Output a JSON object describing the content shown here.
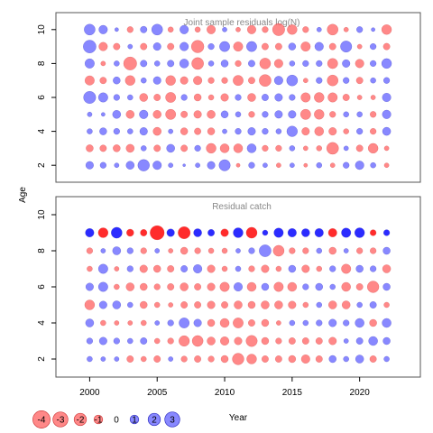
{
  "colors": {
    "negative": "#ff6060",
    "positive": "#6060ff",
    "negative_strong": "#ff2020",
    "positive_strong": "#2020ff",
    "frame": "#555555"
  },
  "chart_data": [
    {
      "type": "bubble",
      "title": "Joint sample residuals log(N)",
      "years": [
        2000,
        2001,
        2002,
        2003,
        2004,
        2005,
        2006,
        2007,
        2008,
        2009,
        2010,
        2011,
        2012,
        2013,
        2014,
        2015,
        2016,
        2017,
        2018,
        2019,
        2020,
        2021,
        2022
      ],
      "ages": [
        2,
        3,
        4,
        5,
        6,
        7,
        8,
        9,
        10
      ],
      "ylim": [
        1,
        11
      ],
      "yticks": [
        2,
        4,
        6,
        8,
        10
      ],
      "residuals": {
        "10": [
          1.6,
          1.0,
          0.2,
          -0.5,
          0.6,
          1.6,
          -0.4,
          1.0,
          -0.4,
          -1.0,
          0.3,
          -0.3,
          -1.0,
          -0.5,
          -2.0,
          -1.3,
          -0.5,
          0.3,
          -1.6,
          -0.3,
          0.5,
          0.2,
          -1.3
        ],
        "9": [
          2.2,
          -1.0,
          -0.6,
          0.3,
          -0.6,
          0.8,
          -0.6,
          1.0,
          -2.1,
          0.5,
          1.4,
          -1.2,
          1.4,
          -0.6,
          -0.6,
          0.7,
          -1.2,
          1.0,
          -0.6,
          1.7,
          -0.3,
          0.5,
          -0.6
        ],
        "8": [
          1.2,
          -0.3,
          0.4,
          -2.3,
          0.6,
          0.4,
          0.6,
          1.1,
          -1.9,
          0.4,
          0.7,
          -0.5,
          0.6,
          -1.6,
          -1.0,
          0.4,
          0.5,
          0.5,
          -1.4,
          0.8,
          -1.0,
          0.5,
          1.3
        ],
        "7": [
          -1.2,
          -0.6,
          0.7,
          -1.3,
          0.4,
          0.8,
          -1.3,
          -0.8,
          -1.0,
          -0.5,
          -0.5,
          -1.4,
          -0.6,
          -1.9,
          1.0,
          1.6,
          -0.3,
          0.5,
          -1.6,
          0.5,
          -0.6,
          0.4,
          0.5
        ],
        "6": [
          2.0,
          1.2,
          0.5,
          0.4,
          -0.9,
          -0.6,
          -1.4,
          0.5,
          -0.7,
          -0.4,
          -0.8,
          0.5,
          -0.9,
          0.6,
          0.8,
          0.5,
          -1.2,
          -1.3,
          -1.2,
          -0.6,
          -0.3,
          -0.3,
          1.0
        ],
        "5": [
          0.3,
          0.2,
          0.9,
          -0.9,
          1.0,
          -0.9,
          -1.4,
          -0.6,
          -0.8,
          -0.9,
          0.7,
          0.4,
          -0.5,
          0.5,
          0.8,
          0.8,
          -1.4,
          -1.3,
          -0.5,
          0.4,
          0.4,
          -0.5,
          1.0
        ],
        "4": [
          0.4,
          0.7,
          0.5,
          0.4,
          0.8,
          -0.9,
          0.3,
          -0.7,
          -0.6,
          -0.7,
          0.3,
          0.5,
          0.8,
          0.5,
          0.4,
          1.5,
          -0.8,
          -1.1,
          -0.8,
          -0.4,
          0.5,
          -0.5,
          0.9
        ],
        "3": [
          -0.7,
          -0.6,
          -0.7,
          -0.9,
          0.4,
          -0.6,
          0.9,
          -0.6,
          0.5,
          -1.3,
          -1.1,
          -1.1,
          1.1,
          -0.5,
          -0.5,
          0.4,
          -0.3,
          -0.4,
          -1.9,
          0.3,
          -0.6,
          -1.3,
          -0.3
        ],
        "2": [
          0.8,
          0.5,
          0.3,
          0.9,
          1.8,
          1.0,
          0.3,
          0.1,
          0.3,
          0.8,
          1.7,
          -0.2,
          0.5,
          0.3,
          -0.3,
          0.3,
          -0.2,
          0.4,
          -0.3,
          0.5,
          1.0,
          0.4,
          -0.3
        ]
      }
    },
    {
      "type": "bubble",
      "title": "Residual catch",
      "years": [
        2000,
        2001,
        2002,
        2003,
        2004,
        2005,
        2006,
        2007,
        2008,
        2009,
        2010,
        2011,
        2012,
        2013,
        2014,
        2015,
        2016,
        2017,
        2018,
        2019,
        2020,
        2021,
        2022
      ],
      "ages": [
        2,
        3,
        4,
        5,
        6,
        7,
        8,
        9,
        10
      ],
      "ylim": [
        1,
        11
      ],
      "yticks": [
        2,
        4,
        6,
        8,
        10
      ],
      "strong_row": 9,
      "residuals": {
        "9": [
          1.0,
          -1.3,
          1.6,
          -0.7,
          -0.6,
          -2.7,
          0.8,
          -2.0,
          0.9,
          0.6,
          -0.8,
          1.3,
          -1.6,
          0.4,
          1.2,
          1.0,
          0.9,
          1.0,
          -1.0,
          1.2,
          1.3,
          -0.5,
          0.5
        ],
        "8": [
          -0.5,
          0.3,
          0.9,
          0.5,
          -0.5,
          0.3,
          -0.3,
          -0.7,
          -0.5,
          -0.4,
          -0.4,
          0.3,
          0.5,
          1.9,
          -1.6,
          -0.5,
          -0.5,
          0.4,
          -0.7,
          0.3,
          -0.5,
          -0.5,
          0.7
        ],
        "7": [
          -0.4,
          1.2,
          -0.3,
          0.5,
          -0.8,
          -0.7,
          -0.6,
          0.6,
          1.0,
          -0.8,
          -0.4,
          0.4,
          -0.5,
          -0.8,
          -0.4,
          0.7,
          -0.8,
          -0.4,
          0.5,
          -1.2,
          0.7,
          0.5,
          -0.9
        ],
        "6": [
          0.8,
          1.2,
          -0.4,
          -0.9,
          -0.7,
          -0.5,
          -0.6,
          -0.9,
          -0.6,
          -0.8,
          -1.2,
          1.0,
          -1.1,
          0.7,
          -1.2,
          -1.1,
          0.5,
          0.7,
          0.4,
          -1.1,
          -0.6,
          -1.8,
          0.7
        ],
        "5": [
          -1.3,
          0.8,
          0.9,
          0.4,
          -0.7,
          -0.4,
          -0.3,
          -0.6,
          -0.6,
          -0.8,
          -0.6,
          -0.9,
          -0.7,
          -0.9,
          -0.9,
          -0.8,
          -0.4,
          0.4,
          -0.9,
          -0.9,
          0.4,
          0.6,
          -0.4
        ],
        "4": [
          0.9,
          -0.4,
          -0.3,
          -0.3,
          -0.4,
          0.3,
          0.5,
          1.4,
          0.8,
          -0.7,
          -1.1,
          -1.4,
          -0.6,
          -0.7,
          -0.3,
          0.4,
          0.4,
          0.5,
          0.8,
          0.5,
          1.1,
          -0.7,
          1.1
        ],
        "3": [
          0.5,
          0.8,
          0.5,
          0.4,
          0.6,
          -0.4,
          -0.5,
          -1.5,
          -1.6,
          -0.9,
          -1.0,
          -0.8,
          -1.7,
          -0.7,
          -0.5,
          -0.6,
          -0.6,
          -0.6,
          -0.8,
          0.3,
          0.6,
          1.1,
          0.7
        ],
        "2": [
          0.4,
          0.3,
          0.3,
          -0.6,
          -0.4,
          -0.6,
          0.3,
          -0.5,
          -0.6,
          -0.5,
          -0.7,
          -1.8,
          -1.3,
          -0.6,
          -0.6,
          -0.7,
          -1.0,
          -0.6,
          0.7,
          0.4,
          0.9,
          -0.6,
          0.4
        ]
      }
    }
  ],
  "axes": {
    "x_label": "Year",
    "y_label": "Age",
    "xticks": [
      2000,
      2005,
      2010,
      2015,
      2020
    ],
    "xlim": [
      1997.5,
      2024.5
    ]
  },
  "legend": {
    "placement": "bottom-left",
    "items": [
      {
        "value": -4,
        "label": "-4"
      },
      {
        "value": -3,
        "label": "-3"
      },
      {
        "value": -2,
        "label": "-2"
      },
      {
        "value": -1,
        "label": "-1"
      },
      {
        "value": 0,
        "label": "0"
      },
      {
        "value": 1,
        "label": "1"
      },
      {
        "value": 2,
        "label": "2"
      },
      {
        "value": 3,
        "label": "3"
      }
    ]
  }
}
